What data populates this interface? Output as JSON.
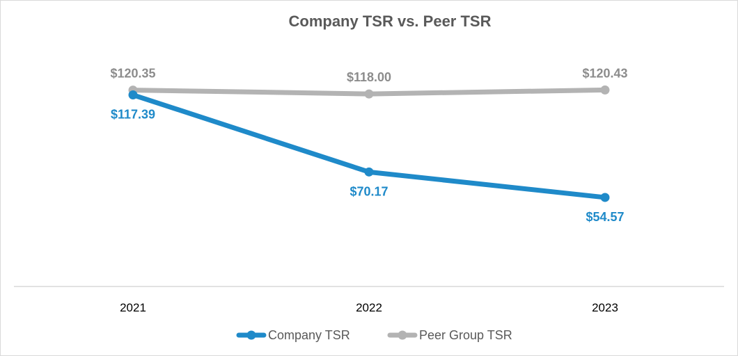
{
  "chart_data": {
    "type": "line",
    "title": "Company TSR vs. Peer TSR",
    "categories": [
      "2021",
      "2022",
      "2023"
    ],
    "series": [
      {
        "name": "Company TSR",
        "values": [
          117.39,
          70.17,
          54.57
        ],
        "labels": [
          "$117.39",
          "$70.17",
          "$54.57"
        ],
        "color": "#1f8ac9"
      },
      {
        "name": "Peer Group TSR",
        "values": [
          120.35,
          118.0,
          120.43
        ],
        "labels": [
          "$120.35",
          "$118.00",
          "$120.43"
        ],
        "color": "#b3b3b3"
      }
    ],
    "ylim": [
      0,
      150
    ],
    "grid": false,
    "legend": "bottom"
  }
}
